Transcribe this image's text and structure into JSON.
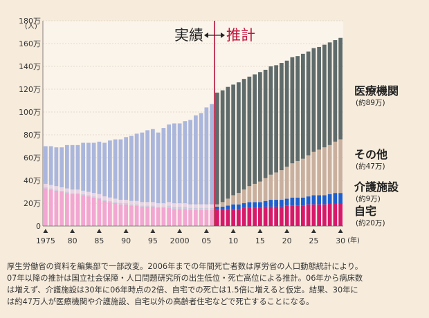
{
  "chart_data": {
    "type": "bar",
    "stacked": true,
    "y_unit": "(人)",
    "ylim": [
      0,
      180
    ],
    "yticks": [
      "0",
      "20万",
      "40万",
      "60万",
      "80万",
      "100万",
      "120万",
      "140万",
      "160万",
      "180万"
    ],
    "x_tick_labels": [
      "1975",
      "80",
      "85",
      "90",
      "95",
      "2000",
      "05",
      "10",
      "15",
      "20",
      "25",
      "30"
    ],
    "x_unit": "(年)",
    "x": [
      1975,
      1976,
      1977,
      1978,
      1979,
      1980,
      1981,
      1982,
      1983,
      1984,
      1985,
      1986,
      1987,
      1988,
      1989,
      1990,
      1991,
      1992,
      1993,
      1994,
      1995,
      1996,
      1997,
      1998,
      1999,
      2000,
      2001,
      2002,
      2003,
      2004,
      2005,
      2006,
      2007,
      2008,
      2009,
      2010,
      2011,
      2012,
      2013,
      2014,
      2015,
      2016,
      2017,
      2018,
      2019,
      2020,
      2021,
      2022,
      2023,
      2024,
      2025,
      2026,
      2027,
      2028,
      2029,
      2030
    ],
    "actual_period_label": "実績",
    "projection_label": "推計",
    "actual_series": [
      {
        "name": "自宅",
        "color": "#f2a6d2",
        "values": [
          33,
          32,
          31,
          30,
          29,
          28,
          28,
          27,
          26,
          25,
          24,
          22,
          21,
          20,
          19,
          19,
          18,
          18,
          17,
          17,
          17,
          16,
          16,
          16,
          15,
          15,
          15,
          14,
          14,
          14,
          14,
          14
        ]
      },
      {
        "name": "介護施設",
        "color": "#c7cbe0",
        "values": [
          1,
          1,
          1,
          1,
          1,
          1,
          1,
          1,
          1,
          1,
          1,
          1,
          1,
          1,
          1,
          1,
          1,
          1,
          1,
          1,
          1,
          1,
          1,
          2,
          2,
          2,
          2,
          2,
          2,
          2,
          2,
          2
        ]
      },
      {
        "name": "その他",
        "color": "#e8d3e6",
        "values": [
          3,
          3,
          3,
          3,
          3,
          3,
          3,
          3,
          3,
          3,
          3,
          3,
          3,
          3,
          3,
          3,
          3,
          3,
          3,
          3,
          3,
          3,
          3,
          3,
          3,
          3,
          3,
          3,
          3,
          3,
          3,
          3
        ]
      },
      {
        "name": "医療機関",
        "color": "#aab6dc",
        "values": [
          33,
          34,
          34,
          35,
          38,
          39,
          39,
          42,
          43,
          44,
          46,
          47,
          50,
          52,
          53,
          55,
          57,
          59,
          61,
          63,
          64,
          62,
          66,
          68,
          70,
          70,
          72,
          74,
          78,
          80,
          85,
          88
        ]
      }
    ],
    "projection_x": [
      2007,
      2008,
      2009,
      2010,
      2011,
      2012,
      2013,
      2014,
      2015,
      2016,
      2017,
      2018,
      2019,
      2020,
      2021,
      2022,
      2023,
      2024,
      2025,
      2026,
      2027,
      2028,
      2029,
      2030
    ],
    "projection_series": [
      {
        "name": "自宅",
        "label": "自宅",
        "sub": "(約20万)",
        "color": "#d6196a",
        "values": [
          14,
          14,
          15,
          15,
          15,
          16,
          16,
          16,
          16,
          17,
          17,
          17,
          17,
          18,
          18,
          18,
          18,
          19,
          19,
          19,
          19,
          20,
          20,
          20
        ]
      },
      {
        "name": "介護施設",
        "label": "介護施設",
        "sub": "(約9万)",
        "color": "#1e5fce",
        "values": [
          3,
          3,
          3,
          4,
          4,
          4,
          5,
          5,
          5,
          5,
          6,
          6,
          6,
          6,
          7,
          7,
          7,
          7,
          8,
          8,
          8,
          8,
          9,
          9
        ]
      },
      {
        "name": "その他",
        "label": "その他",
        "sub": "(約47万)",
        "color": "#c9b09e",
        "values": [
          2,
          4,
          6,
          8,
          10,
          12,
          14,
          16,
          18,
          20,
          22,
          24,
          26,
          28,
          30,
          32,
          34,
          36,
          38,
          40,
          42,
          43,
          45,
          47
        ]
      },
      {
        "name": "医療機関",
        "label": "医療機関",
        "sub": "(約89万)",
        "color": "#5f6b6a",
        "values": [
          98,
          98,
          98,
          97,
          97,
          97,
          96,
          96,
          96,
          95,
          95,
          94,
          94,
          93,
          93,
          92,
          92,
          91,
          91,
          90,
          90,
          90,
          89,
          89
        ]
      }
    ]
  },
  "caption": [
    "厚生労働省の資料を編集部で一部改変。2006年までの年間死亡者数は厚労省の人口動態統計により。",
    "07年以降の推計は国立社会保障・人口問題研究所の出生低位・死亡高位による推計。06年から病床数",
    "は増えず、介護施設は30年に06年時点の2倍、自宅での死亡は1.5倍に増えると仮定。結果、30年に",
    "は約47万人が医療機関や介護施設、自宅以外の高齢者住宅などで死亡することになる。"
  ]
}
